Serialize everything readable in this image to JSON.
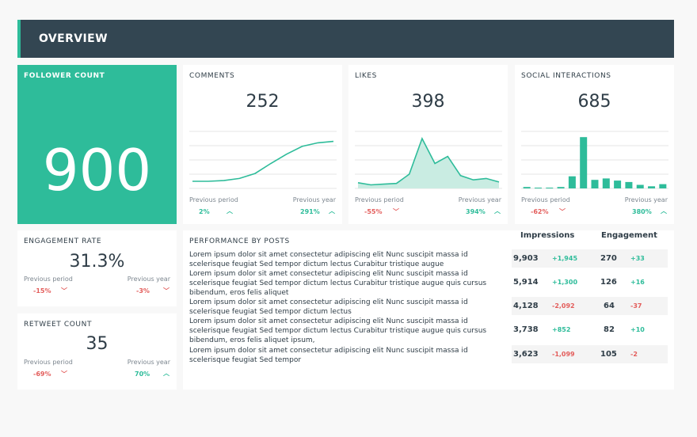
{
  "header": {
    "title": "OVERVIEW"
  },
  "follower": {
    "label": "FOLLOWER COUNT",
    "value": "900"
  },
  "comments": {
    "label": "COMMENTS",
    "value": "252",
    "prev_label": "Previous period",
    "prev_value": "2%",
    "year_label": "Previous year",
    "year_value": "291%",
    "series": [
      10,
      10,
      11,
      14,
      21,
      35,
      48,
      59,
      64,
      66
    ]
  },
  "likes": {
    "label": "LIKES",
    "value": "398",
    "prev_label": "Previous period",
    "prev_value": "-55%",
    "year_label": "Previous year",
    "year_value": "394%",
    "series": [
      8,
      5,
      6,
      7,
      20,
      70,
      35,
      45,
      18,
      12,
      14,
      9
    ]
  },
  "social": {
    "label": "SOCIAL INTERACTIONS",
    "value": "685",
    "prev_label": "Previous period",
    "prev_value": "-62%",
    "year_label": "Previous year",
    "year_value": "380%",
    "series": [
      2,
      0,
      0,
      2,
      17,
      72,
      12,
      14,
      11,
      9,
      5,
      3,
      6
    ]
  },
  "engagement": {
    "label": "ENGAGEMENT RATE",
    "value": "31.3%",
    "prev_label": "Previous period",
    "prev_value": "-15%",
    "year_label": "Previous year",
    "year_value": "-3%"
  },
  "retweet": {
    "label": "RETWEET COUNT",
    "value": "35",
    "prev_label": "Previous period",
    "prev_value": "-69%",
    "year_label": "Previous year",
    "year_value": "70%"
  },
  "posts": {
    "label": "PERFORMANCE BY POSTS",
    "col_impressions": "Impressions",
    "col_engagement": "Engagement",
    "rows": [
      {
        "text": "Lorem ipsum dolor sit amet consectetur adipiscing elit Nunc suscipit massa id scelerisque feugiat Sed tempor dictum lectus Curabitur tristique augue",
        "impressions": "9,903",
        "imp_change": "+1,945",
        "engagement": "270",
        "eng_change": "+33"
      },
      {
        "text": "Lorem ipsum dolor sit amet consectetur adipiscing elit Nunc suscipit massa id scelerisque feugiat Sed tempor dictum lectus Curabitur tristique augue quis cursus bibendum, eros felis aliquet",
        "impressions": "5,914",
        "imp_change": "+1,300",
        "engagement": "126",
        "eng_change": "+16"
      },
      {
        "text": "Lorem ipsum dolor sit amet consectetur adipiscing elit Nunc suscipit massa id scelerisque feugiat Sed tempor dictum lectus",
        "impressions": "4,128",
        "imp_change": "-2,092",
        "engagement": "64",
        "eng_change": "-37"
      },
      {
        "text": "Lorem ipsum dolor sit amet consectetur adipiscing elit Nunc suscipit massa id scelerisque feugiat Sed tempor dictum lectus Curabitur tristique augue quis cursus bibendum, eros felis aliquet ipsum,",
        "impressions": "3,738",
        "imp_change": "+852",
        "engagement": "82",
        "eng_change": "+10"
      },
      {
        "text": "Lorem ipsum dolor sit amet consectetur adipiscing elit Nunc suscipit massa id scelerisque feugiat Sed tempor",
        "impressions": "3,623",
        "imp_change": "-1,099",
        "engagement": "105",
        "eng_change": "-2"
      }
    ]
  },
  "colors": {
    "accent": "#2ebc9a",
    "header_bg": "#334652",
    "positive": "#2ebc9a",
    "negative": "#e35d5b"
  }
}
